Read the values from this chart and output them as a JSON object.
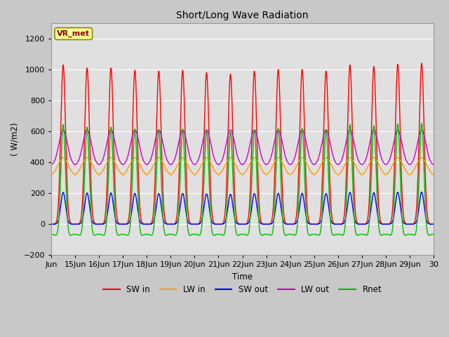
{
  "title": "Short/Long Wave Radiation",
  "ylabel": "( W/m2)",
  "xlabel": "Time",
  "xlim_days": [
    14,
    30
  ],
  "ylim": [
    -200,
    1300
  ],
  "yticks": [
    -200,
    0,
    200,
    400,
    600,
    800,
    1000,
    1200
  ],
  "xtick_labels": [
    "Jun",
    "15Jun",
    "16Jun",
    "17Jun",
    "18Jun",
    "19Jun",
    "20Jun",
    "21Jun",
    "22Jun",
    "23Jun",
    "24Jun",
    "25Jun",
    "26Jun",
    "27Jun",
    "28Jun",
    "29Jun",
    "30"
  ],
  "xtick_positions": [
    14,
    15,
    16,
    17,
    18,
    19,
    20,
    21,
    22,
    23,
    24,
    25,
    26,
    27,
    28,
    29,
    30
  ],
  "fig_bg_color": "#c8c8c8",
  "plot_bg_color": "#e0e0e0",
  "grid_color": "#ffffff",
  "label_box_text": "VR_met",
  "label_box_facecolor": "#ffff99",
  "label_box_edgecolor": "#888800",
  "series": {
    "SW_in": {
      "color": "#ff0000",
      "label": "SW in",
      "lw": 1.0
    },
    "LW_in": {
      "color": "#ff9900",
      "label": "LW in",
      "lw": 1.0
    },
    "SW_out": {
      "color": "#0000ff",
      "label": "SW out",
      "lw": 1.0
    },
    "LW_out": {
      "color": "#cc00cc",
      "label": "LW out",
      "lw": 1.0
    },
    "Rnet": {
      "color": "#00bb00",
      "label": "Rnet",
      "lw": 1.0
    }
  },
  "n_days": 16,
  "start_day": 14,
  "pts_per_day": 288,
  "sw_peaks": [
    1030,
    1010,
    1010,
    995,
    990,
    995,
    980,
    970,
    990,
    1000,
    1000,
    990,
    1030,
    1020,
    1035,
    1040
  ]
}
